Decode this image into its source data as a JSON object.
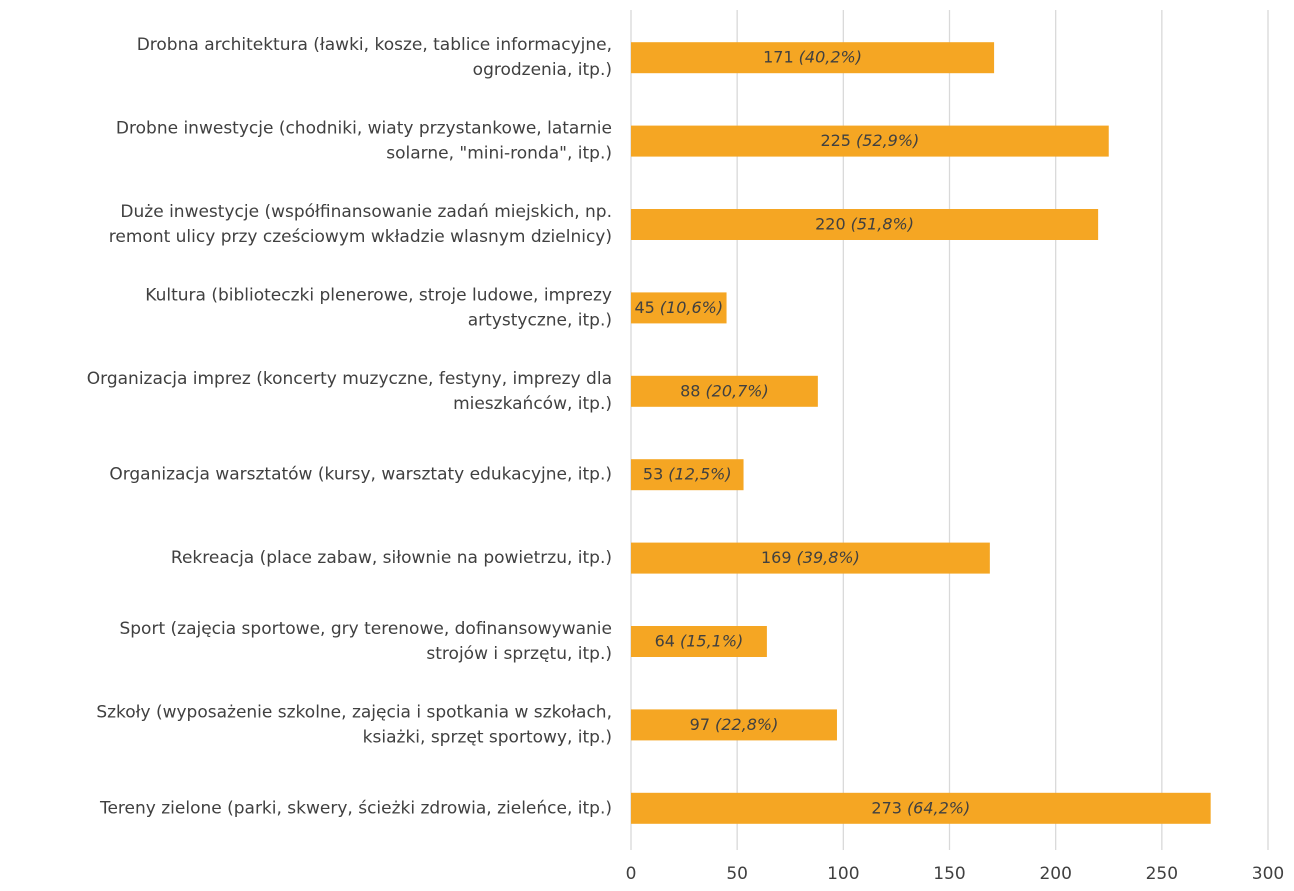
{
  "chart_data": {
    "type": "bar",
    "orientation": "horizontal",
    "categories": [
      [
        "Drobna architektura (ławki, kosze, tablice informacyjne,",
        "ogrodzenia, itp.)"
      ],
      [
        "Drobne inwestycje (chodniki, wiaty przystankowe, latarnie",
        "solarne, \"mini-ronda\", itp.)"
      ],
      [
        "Duże inwestycje (współfinansowanie zadań miejskich, np.",
        "remont ulicy przy cześciowym wkładzie wlasnym dzielnicy)"
      ],
      [
        "Kultura (biblioteczki plenerowe, stroje ludowe, imprezy",
        "artystyczne, itp.)"
      ],
      [
        "Organizacja imprez (koncerty muzyczne, festyny, imprezy dla",
        "mieszkańców, itp.)"
      ],
      [
        "Organizacja warsztatów (kursy, warsztaty edukacyjne, itp.)"
      ],
      [
        "Rekreacja (place zabaw, siłownie na powietrzu, itp.)"
      ],
      [
        "Sport (zajęcia sportowe, gry terenowe, dofinansowywanie",
        "strojów i sprzętu, itp.)"
      ],
      [
        "Szkoły (wyposażenie szkolne, zajęcia i spotkania w szkołach,",
        "ksiażki, sprzęt sportowy, itp.)"
      ],
      [
        "Tereny zielone (parki, skwery, ścieżki zdrowia, zieleńce, itp.)"
      ]
    ],
    "values": [
      171,
      225,
      220,
      45,
      88,
      53,
      169,
      64,
      97,
      273
    ],
    "percent_labels": [
      "(40,2%)",
      "(52,9%)",
      "(51,8%)",
      "(10,6%)",
      "(20,7%)",
      "(12,5%)",
      "(39,8%)",
      "(15,1%)",
      "(22,8%)",
      "(64,2%)"
    ],
    "color": "#f5a623",
    "xlim": [
      0,
      300
    ],
    "xticks": [
      0,
      50,
      100,
      150,
      200,
      250,
      300
    ],
    "grid": true
  }
}
